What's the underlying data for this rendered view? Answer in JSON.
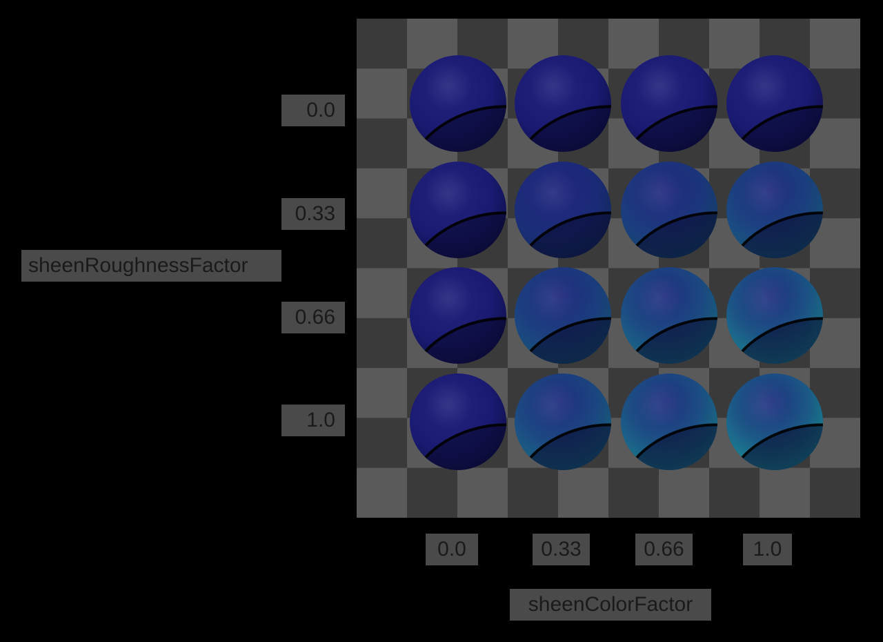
{
  "y_axis": {
    "title": "sheenRoughnessFactor",
    "values": [
      "0.0",
      "0.33",
      "0.66",
      "1.0"
    ]
  },
  "x_axis": {
    "title": "sheenColorFactor",
    "values": [
      "0.0",
      "0.33",
      "0.66",
      "1.0"
    ]
  },
  "colors": {
    "background": "#000000",
    "checker_light": "#5a5a5a",
    "checker_dark": "#3a3a3a",
    "label_bg": "#4a4a4a",
    "label_text": "#1a1a1a",
    "base_sphere": "#1a1a72",
    "sheen": "#1c8a96"
  },
  "spheres": [
    [
      0.0,
      0.0,
      0.0,
      0.0
    ],
    [
      0.0,
      0.25,
      0.45,
      0.6
    ],
    [
      0.0,
      0.55,
      0.75,
      0.9
    ],
    [
      0.0,
      0.7,
      0.85,
      1.0
    ]
  ]
}
